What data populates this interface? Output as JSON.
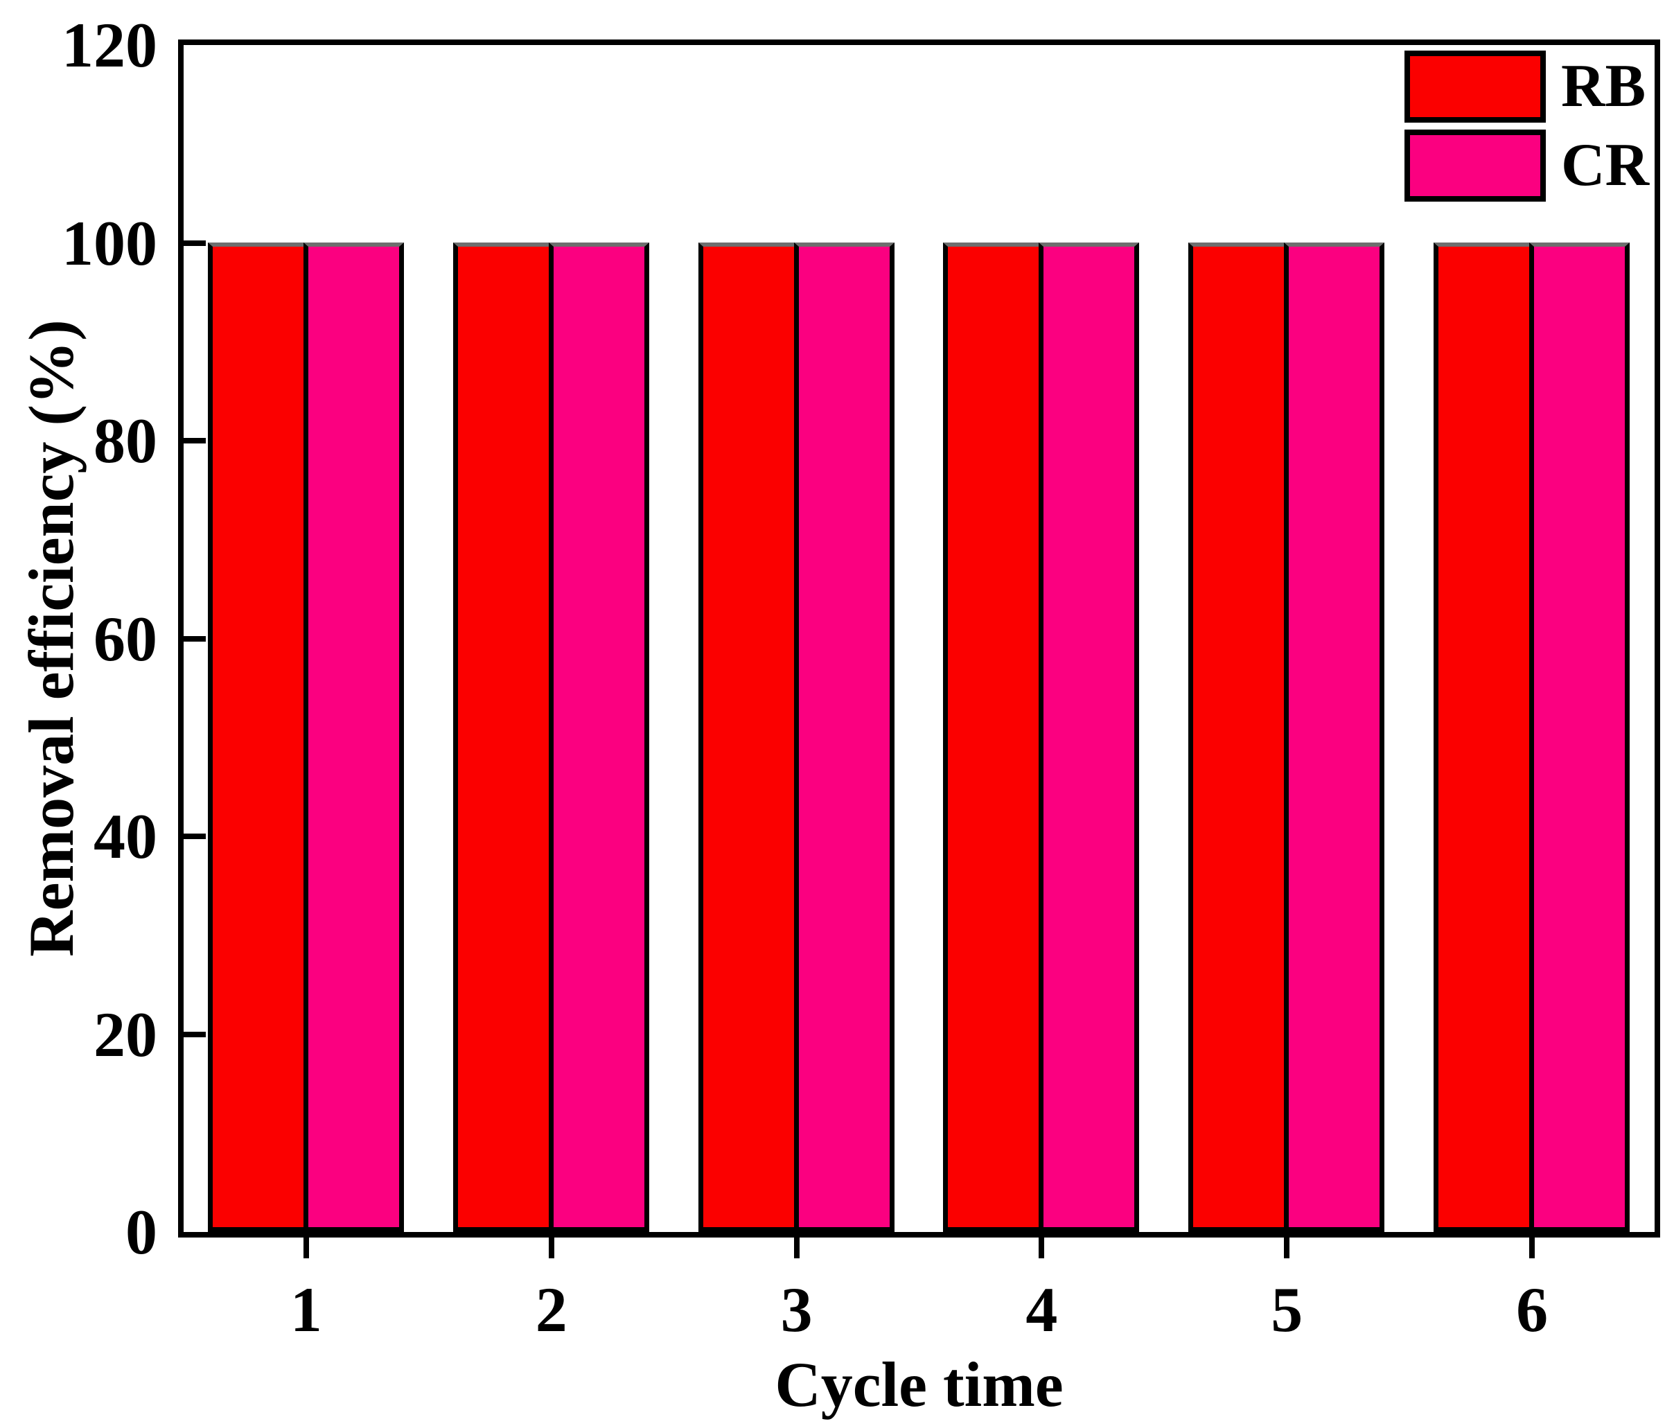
{
  "figure": {
    "background": "#ffffff",
    "axis_color": "#000000",
    "bar_top_edge_color": "#6e6e6e"
  },
  "chart_data": {
    "type": "bar",
    "title": "",
    "xlabel": "Cycle time",
    "ylabel": "Removal efficiency (%)",
    "categories": [
      "1",
      "2",
      "3",
      "4",
      "5",
      "6"
    ],
    "series": [
      {
        "name": "RB",
        "color": "#fb0000",
        "values": [
          100,
          100,
          100,
          100,
          100,
          100
        ]
      },
      {
        "name": "CR",
        "color": "#fb0080",
        "values": [
          100,
          100,
          100,
          100,
          100,
          100
        ]
      }
    ],
    "ylim": [
      0,
      120
    ],
    "yticks": [
      0,
      20,
      40,
      60,
      80,
      100,
      120
    ],
    "ytick_labels": [
      "0",
      "20",
      "40",
      "60",
      "80",
      "100",
      "120"
    ],
    "grid": false,
    "legend_position": "top-right",
    "bar_edge_color": "#000000"
  }
}
